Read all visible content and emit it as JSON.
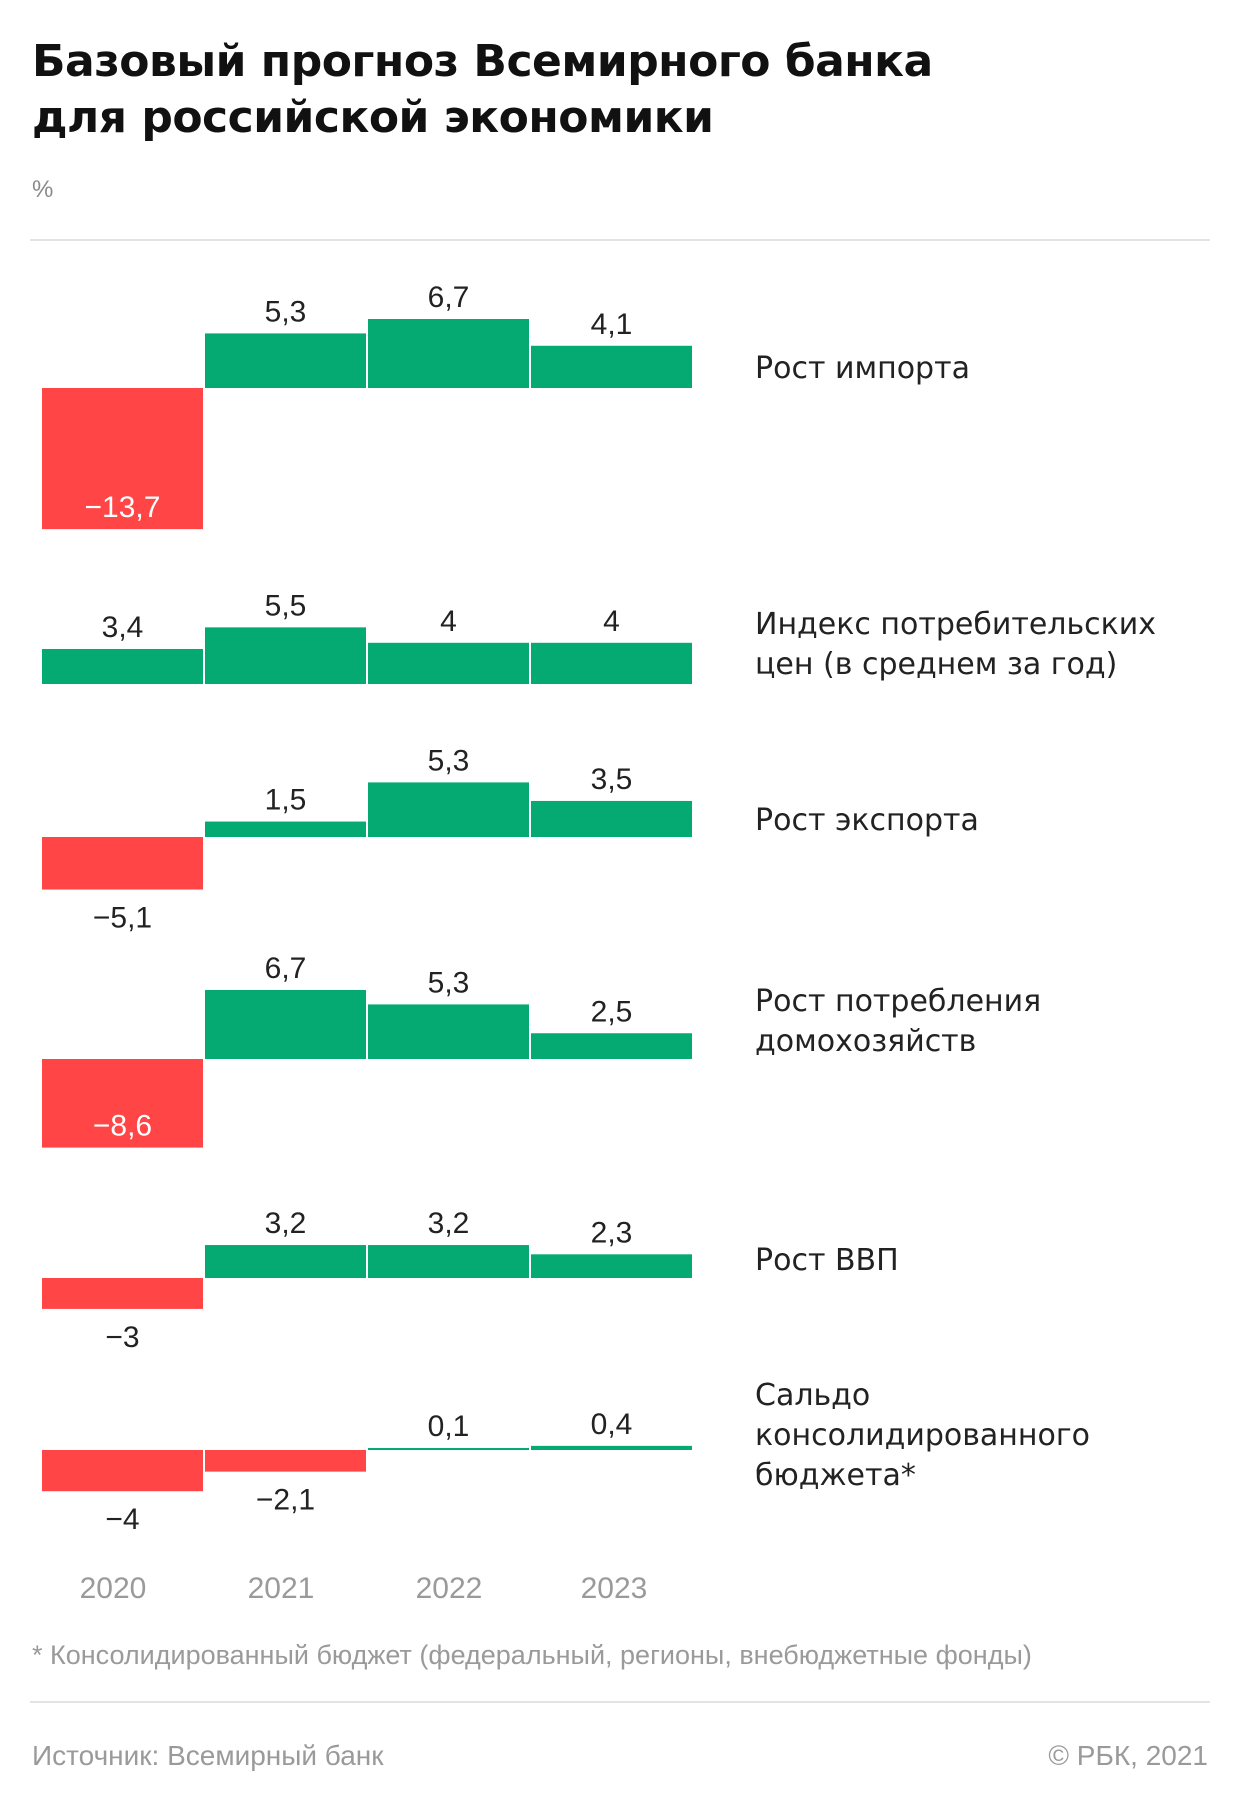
{
  "title_line1": "Базовый прогноз Всемирного банка",
  "title_line2": "для российской экономики",
  "unit": "%",
  "footnote": "* Консолидированный бюджет (федеральный, регионы, внебюджетные фонды)",
  "source": "Источник: Всемирный банк",
  "copyright": "© РБК, 2021",
  "colors": {
    "positive": "#05aa73",
    "negative": "#ff4545",
    "axis_text": "#9a9a9a"
  },
  "chart_data": {
    "type": "bar",
    "categories": [
      "2020",
      "2021",
      "2022",
      "2023"
    ],
    "series": [
      {
        "name": "Рост импорта",
        "values": [
          -13.7,
          5.3,
          6.7,
          4.1
        ],
        "labels": [
          "−13,7",
          "5,3",
          "6,7",
          "4,1"
        ]
      },
      {
        "name": "Индекс потребительских цен (в среднем за год)",
        "values": [
          3.4,
          5.5,
          4,
          4
        ],
        "labels": [
          "3,4",
          "5,5",
          "4",
          "4"
        ]
      },
      {
        "name": "Рост экспорта",
        "values": [
          -5.1,
          1.5,
          5.3,
          3.5
        ],
        "labels": [
          "−5,1",
          "1,5",
          "5,3",
          "3,5"
        ]
      },
      {
        "name": "Рост потребления домохозяйств",
        "values": [
          -8.6,
          6.7,
          5.3,
          2.5
        ],
        "labels": [
          "−8,6",
          "6,7",
          "5,3",
          "2,5"
        ]
      },
      {
        "name": "Рост ВВП",
        "values": [
          -3,
          3.2,
          3.2,
          2.3
        ],
        "labels": [
          "−3",
          "3,2",
          "3,2",
          "2,3"
        ]
      },
      {
        "name": "Сальдо консолидированного бюджета*",
        "values": [
          -4,
          -2.1,
          0.1,
          0.4
        ],
        "labels": [
          "−4",
          "−2,1",
          "0,1",
          "0,4"
        ]
      }
    ]
  }
}
